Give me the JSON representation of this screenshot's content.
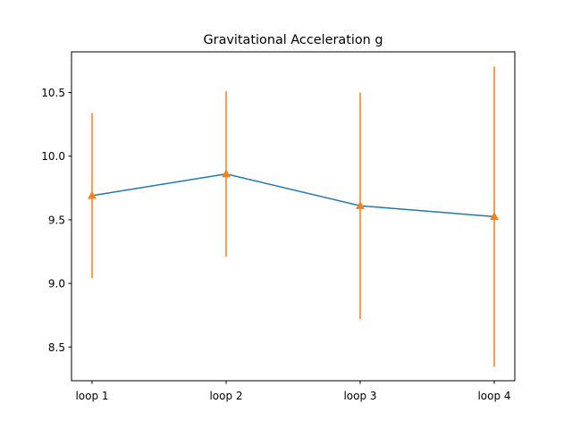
{
  "chart_data": {
    "type": "line",
    "title": "Gravitational Acceleration g",
    "xlabel": "",
    "ylabel": "",
    "categories": [
      "loop 1",
      "loop 2",
      "loop 3",
      "loop 4"
    ],
    "series": [
      {
        "values": [
          9.69,
          9.86,
          9.61,
          9.525
        ],
        "errors": [
          0.65,
          0.65,
          0.89,
          1.18
        ],
        "line_color": "#1f77b4",
        "marker_color": "#ff7f0e",
        "marker": "triangle-up"
      }
    ],
    "ylim": [
      8.235,
      10.82
    ],
    "yticks": [
      8.5,
      9.0,
      9.5,
      10.0,
      10.5
    ],
    "ytick_labels": [
      "8.5",
      "9.0",
      "9.5",
      "10.0",
      "10.5"
    ],
    "grid": false,
    "legend": "none"
  }
}
